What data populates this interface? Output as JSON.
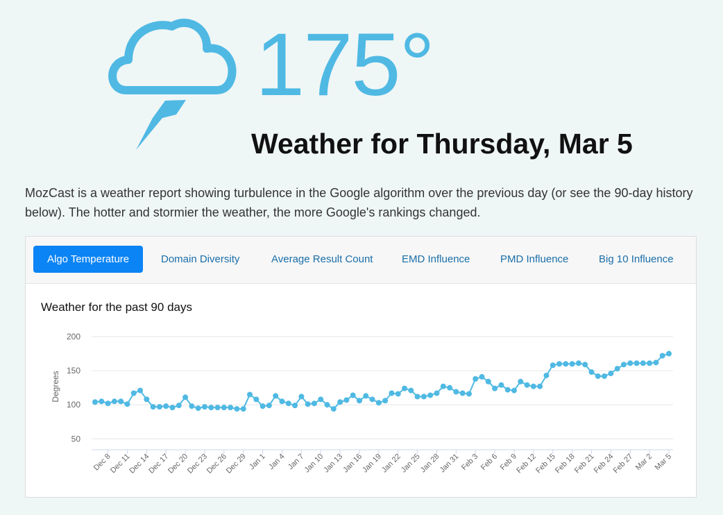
{
  "header": {
    "temperature": "175°",
    "title": "Weather for Thursday, Mar 5"
  },
  "description": "MozCast is a weather report showing turbulence in the Google algorithm over the previous day (or see the 90-day history below). The hotter and stormier the weather, the more Google's rankings changed.",
  "tabs": [
    "Algo Temperature",
    "Domain Diversity",
    "Average Result Count",
    "EMD Influence",
    "PMD Influence",
    "Big 10 Influence"
  ],
  "chart_data": {
    "type": "line",
    "title": "Weather for the past 90 days",
    "y_label": "Degrees",
    "color": "#4fb9e3",
    "categories": [
      null,
      null,
      "Dec 8",
      null,
      null,
      "Dec 11",
      null,
      null,
      "Dec 14",
      null,
      null,
      "Dec 17",
      null,
      null,
      "Dec 20",
      null,
      null,
      "Dec 23",
      null,
      null,
      "Dec 26",
      null,
      null,
      "Dec 29",
      null,
      null,
      "Jan 1",
      null,
      null,
      "Jan 4",
      null,
      null,
      "Jan 7",
      null,
      null,
      "Jan 10",
      null,
      null,
      "Jan 13",
      null,
      null,
      "Jan 16",
      null,
      null,
      "Jan 19",
      null,
      null,
      "Jan 22",
      null,
      null,
      "Jan 25",
      null,
      null,
      "Jan 28",
      null,
      null,
      "Jan 31",
      null,
      null,
      "Feb 3",
      null,
      null,
      "Feb 6",
      null,
      null,
      "Feb 9",
      null,
      null,
      "Feb 12",
      null,
      null,
      "Feb 15",
      null,
      null,
      "Feb 18",
      null,
      null,
      "Feb 21",
      null,
      null,
      "Feb 24",
      null,
      null,
      "Feb 27",
      null,
      null,
      "Mar 2",
      null,
      null,
      "Mar 5"
    ],
    "values": [
      104,
      105,
      102,
      105,
      105,
      101,
      117,
      121,
      108,
      97,
      97,
      98,
      96,
      99,
      111,
      98,
      95,
      97,
      96,
      96,
      96,
      96,
      94,
      94,
      115,
      108,
      98,
      99,
      113,
      105,
      102,
      99,
      112,
      101,
      102,
      108,
      100,
      94,
      104,
      107,
      114,
      106,
      113,
      108,
      103,
      106,
      117,
      116,
      124,
      121,
      112,
      112,
      114,
      117,
      127,
      125,
      119,
      117,
      116,
      138,
      141,
      134,
      124,
      129,
      122,
      121,
      134,
      129,
      127,
      127,
      143,
      158,
      160,
      160,
      160,
      161,
      159,
      148,
      142,
      142,
      146,
      153,
      159,
      161,
      161,
      161,
      161,
      162,
      172,
      175
    ],
    "ylim": [
      34,
      200
    ],
    "yticks": [
      50,
      100,
      150,
      200
    ],
    "grid": true
  }
}
